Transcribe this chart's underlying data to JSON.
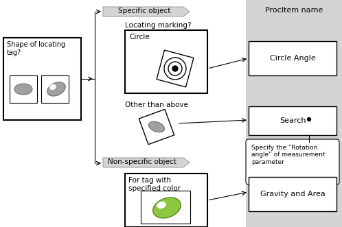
{
  "bg_color": "#ffffff",
  "gray_panel_color": "#d4d4d4",
  "box_color": "#ffffff",
  "box_edge": "#000000",
  "arrow_color": "#000000",
  "shape_gray": "#a0a0a0",
  "shape_green": "#8dc63f",
  "shape_green_edge": "#5a8a1a",
  "title": "ProcItem name",
  "label_specific": "Specific object",
  "label_nonspecific": "Non-specific object",
  "label_locating": "Locating marking?",
  "label_shape": "Shape of locating\ntag?",
  "label_circle": "Circle",
  "label_other": "Other than above",
  "label_color_tag": "For tag with\nspecified color",
  "label_circle_angle": "Circle Angle",
  "label_search": "Search",
  "label_gravity": "Gravity and Area",
  "label_note": "Specify the “Rotation\nangle” of measurement\nparameter",
  "figsize": [
    4.98,
    3.31
  ],
  "dpi": 100
}
